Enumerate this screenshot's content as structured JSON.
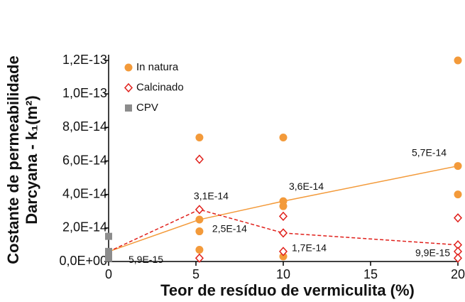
{
  "chart_data": {
    "type": "scatter",
    "x_label": "Teor de resíduo de vermiculita (%)",
    "y_label": [
      "Costante de permeabilidade",
      "Darcyana - k₁(m²)"
    ],
    "xlim": [
      0,
      20
    ],
    "xticks": [
      0,
      5,
      10,
      15,
      20
    ],
    "ylim": [
      0,
      1.2e-13
    ],
    "yticks": [
      {
        "value": 0,
        "label": "0,0E+00"
      },
      {
        "value": 2e-14,
        "label": "2,0E-14"
      },
      {
        "value": 4e-14,
        "label": "4,0E-14"
      },
      {
        "value": 6e-14,
        "label": "6,0E-14"
      },
      {
        "value": 8e-14,
        "label": "8,0E-14"
      },
      {
        "value": 1e-13,
        "label": "1,0E-13"
      },
      {
        "value": 1.2e-13,
        "label": "1,2E-13"
      }
    ],
    "series": [
      {
        "name": "In natura",
        "color": "#f39a3a",
        "marker": "circle",
        "x": [
          5.2,
          5.2,
          5.2,
          5.2,
          10,
          10,
          10,
          10,
          20,
          20,
          20
        ],
        "values": [
          7.4e-14,
          2.5e-14,
          1.8e-14,
          7e-15,
          7.4e-14,
          3.6e-14,
          3.3e-14,
          3e-15,
          1.2e-13,
          5.7e-14,
          4e-14
        ]
      },
      {
        "name": "Calcinado",
        "color": "#e0201b",
        "marker": "diamond",
        "x": [
          5.2,
          5.2,
          5.2,
          10,
          10,
          10,
          20,
          20,
          20,
          20
        ],
        "values": [
          6.1e-14,
          3.1e-14,
          2e-15,
          2.7e-14,
          1.7e-14,
          6e-15,
          2.6e-14,
          9.9e-15,
          6e-15,
          2e-15
        ]
      },
      {
        "name": "CPV",
        "color": "#8c8c8c",
        "marker": "square",
        "x": [
          0,
          0,
          0,
          0
        ],
        "values": [
          1.5e-14,
          6e-15,
          4e-15,
          2e-15
        ]
      }
    ],
    "lines": [
      {
        "color": "#f39a3a",
        "dashed": false,
        "x": [
          0,
          5.2,
          10,
          20
        ],
        "values": [
          5.9e-15,
          2.5e-14,
          3.6e-14,
          5.7e-14
        ],
        "value_labels": [
          "5,9E-15",
          "2,5E-14",
          "3,6E-14",
          "5,7E-14"
        ]
      },
      {
        "color": "#e0201b",
        "dashed": true,
        "x": [
          0,
          5.2,
          10,
          20
        ],
        "values": [
          5.9e-15,
          3.1e-14,
          1.7e-14,
          9.9e-15
        ],
        "value_labels": [
          null,
          "3,1E-14",
          "1,7E-14",
          "9,9E-15"
        ]
      }
    ]
  }
}
